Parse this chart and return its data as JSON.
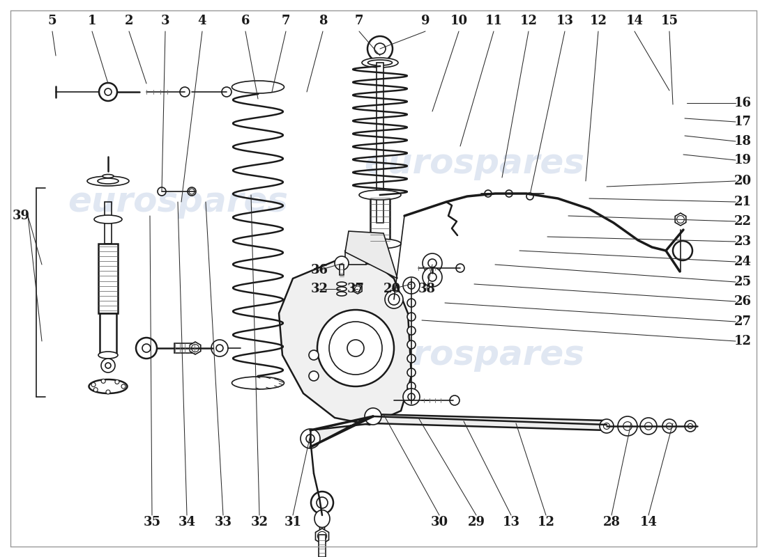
{
  "bg": "#ffffff",
  "lc": "#1a1a1a",
  "lw_thin": 0.8,
  "lw_med": 1.2,
  "lw_thick": 1.8,
  "lw_bold": 2.5,
  "watermark_text": "eurospares",
  "watermark_color": "#c8d4e8",
  "watermark_alpha": 0.55,
  "top_nums": [
    [
      "5",
      75
    ],
    [
      "1",
      132
    ],
    [
      "2",
      185
    ],
    [
      "3",
      237
    ],
    [
      "4",
      290
    ],
    [
      "6",
      352
    ],
    [
      "7",
      410
    ],
    [
      "8",
      463
    ],
    [
      "7",
      515
    ],
    [
      "9",
      610
    ],
    [
      "10",
      658
    ],
    [
      "11",
      708
    ],
    [
      "12",
      758
    ],
    [
      "13",
      810
    ],
    [
      "12",
      858
    ],
    [
      "14",
      910
    ],
    [
      "15",
      960
    ]
  ],
  "right_nums": [
    [
      "16",
      148
    ],
    [
      "17",
      175
    ],
    [
      "18",
      203
    ],
    [
      "19",
      230
    ],
    [
      "20",
      260
    ],
    [
      "21",
      290
    ],
    [
      "22",
      318
    ],
    [
      "23",
      347
    ],
    [
      "24",
      376
    ],
    [
      "25",
      405
    ],
    [
      "26",
      433
    ],
    [
      "27",
      462
    ],
    [
      "12",
      490
    ]
  ],
  "bot_nums": [
    [
      "35",
      218
    ],
    [
      "34",
      268
    ],
    [
      "33",
      320
    ],
    [
      "32",
      372
    ],
    [
      "31",
      420
    ],
    [
      "30",
      630
    ],
    [
      "29",
      683
    ],
    [
      "13",
      733
    ],
    [
      "12",
      783
    ],
    [
      "28",
      877
    ],
    [
      "14",
      930
    ]
  ],
  "left_nums": [
    [
      "39",
      30,
      310
    ]
  ],
  "mid_nums": [
    [
      "36",
      458,
      388
    ],
    [
      "32",
      458,
      415
    ],
    [
      "37",
      510,
      415
    ],
    [
      "20",
      562,
      415
    ],
    [
      "38",
      612,
      415
    ]
  ]
}
